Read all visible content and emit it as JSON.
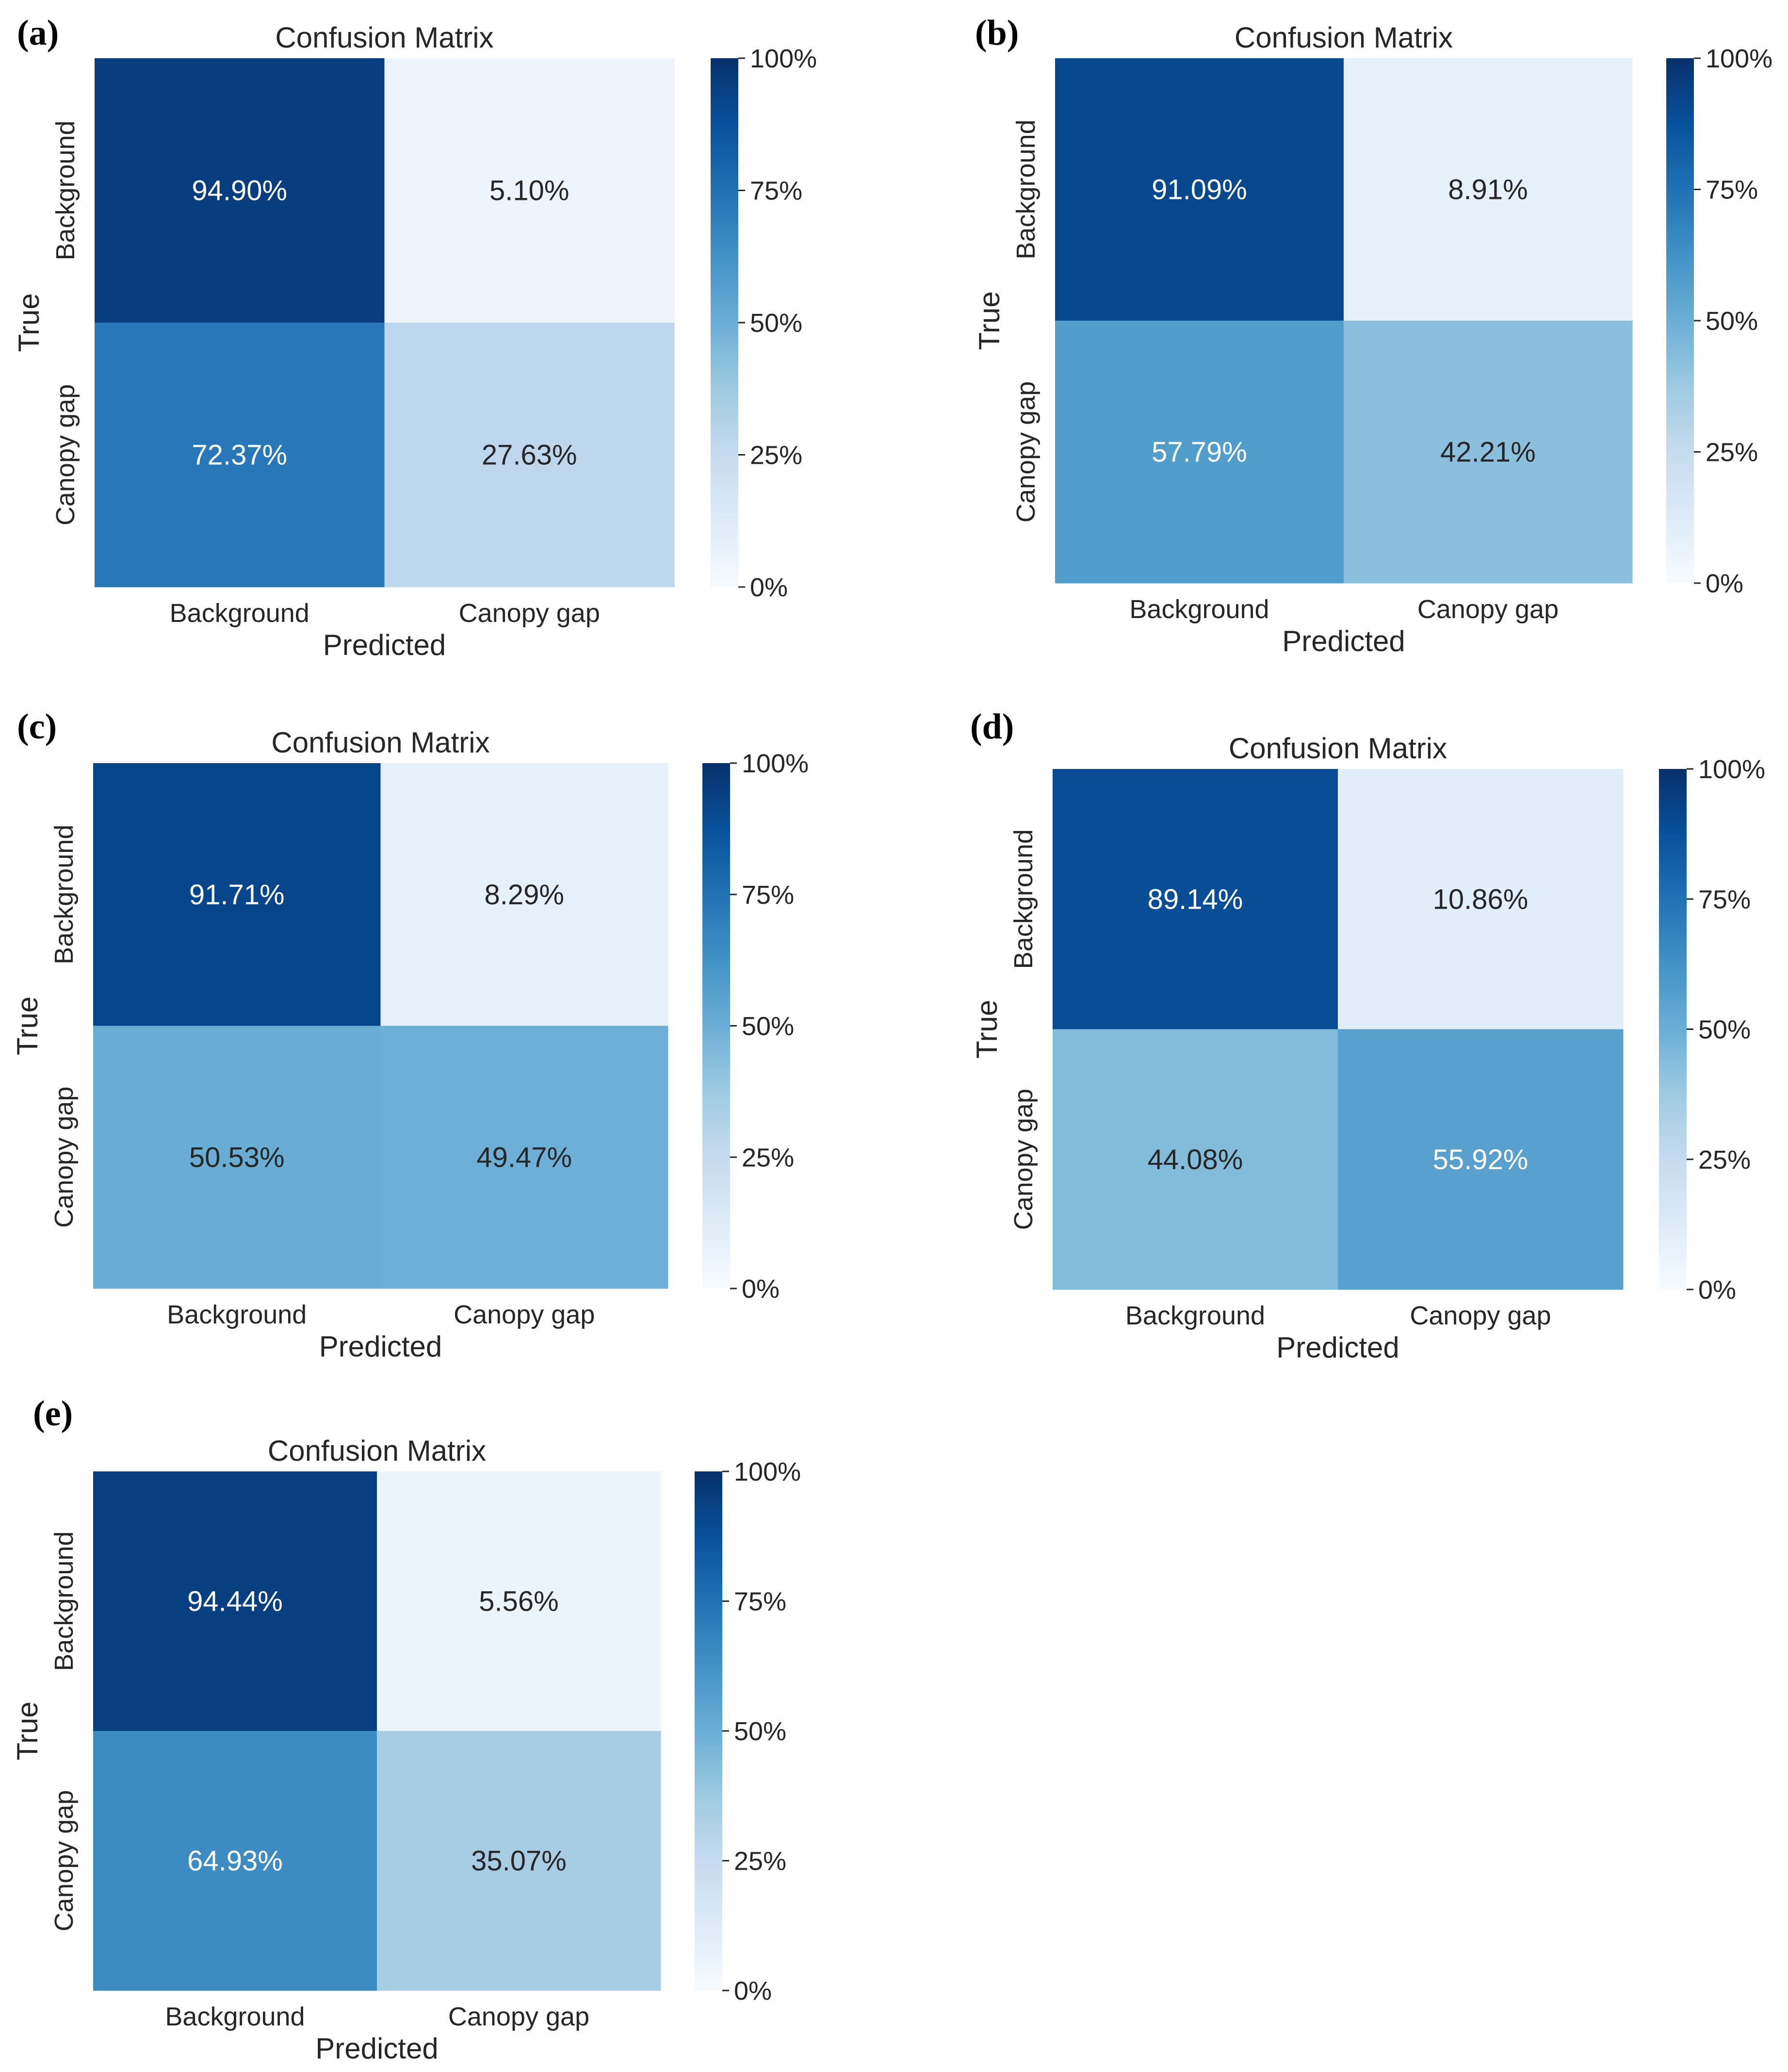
{
  "chart_data": [
    {
      "panel": "(a)",
      "type": "heatmap",
      "title": "Confusion Matrix",
      "xlabel": "Predicted",
      "ylabel": "True",
      "x_categories": [
        "Background",
        "Canopy gap"
      ],
      "y_categories": [
        "Background",
        "Canopy gap"
      ],
      "values": [
        [
          94.9,
          5.1
        ],
        [
          72.37,
          27.63
        ]
      ],
      "cell_labels": [
        [
          "94.90%",
          "5.10%"
        ],
        [
          "72.37%",
          "27.63%"
        ]
      ],
      "colorbar": {
        "range": [
          0,
          100
        ],
        "ticks": [
          "0%",
          "25%",
          "50%",
          "75%",
          "100%"
        ]
      }
    },
    {
      "panel": "(b)",
      "type": "heatmap",
      "title": "Confusion Matrix",
      "xlabel": "Predicted",
      "ylabel": "True",
      "x_categories": [
        "Background",
        "Canopy gap"
      ],
      "y_categories": [
        "Background",
        "Canopy gap"
      ],
      "values": [
        [
          91.09,
          8.91
        ],
        [
          57.79,
          42.21
        ]
      ],
      "cell_labels": [
        [
          "91.09%",
          "8.91%"
        ],
        [
          "57.79%",
          "42.21%"
        ]
      ],
      "colorbar": {
        "range": [
          0,
          100
        ],
        "ticks": [
          "0%",
          "25%",
          "50%",
          "75%",
          "100%"
        ]
      }
    },
    {
      "panel": "(c)",
      "type": "heatmap",
      "title": "Confusion Matrix",
      "xlabel": "Predicted",
      "ylabel": "True",
      "x_categories": [
        "Background",
        "Canopy gap"
      ],
      "y_categories": [
        "Background",
        "Canopy gap"
      ],
      "values": [
        [
          91.71,
          8.29
        ],
        [
          50.53,
          49.47
        ]
      ],
      "cell_labels": [
        [
          "91.71%",
          "8.29%"
        ],
        [
          "50.53%",
          "49.47%"
        ]
      ],
      "colorbar": {
        "range": [
          0,
          100
        ],
        "ticks": [
          "0%",
          "25%",
          "50%",
          "75%",
          "100%"
        ]
      }
    },
    {
      "panel": "(d)",
      "type": "heatmap",
      "title": "Confusion Matrix",
      "xlabel": "Predicted",
      "ylabel": "True",
      "x_categories": [
        "Background",
        "Canopy gap"
      ],
      "y_categories": [
        "Background",
        "Canopy gap"
      ],
      "values": [
        [
          89.14,
          10.86
        ],
        [
          44.08,
          55.92
        ]
      ],
      "cell_labels": [
        [
          "89.14%",
          "10.86%"
        ],
        [
          "44.08%",
          "55.92%"
        ]
      ],
      "colorbar": {
        "range": [
          0,
          100
        ],
        "ticks": [
          "0%",
          "25%",
          "50%",
          "75%",
          "100%"
        ]
      }
    },
    {
      "panel": "(e)",
      "type": "heatmap",
      "title": "Confusion Matrix",
      "xlabel": "Predicted",
      "ylabel": "True",
      "x_categories": [
        "Background",
        "Canopy gap"
      ],
      "y_categories": [
        "Background",
        "Canopy gap"
      ],
      "values": [
        [
          94.44,
          5.56
        ],
        [
          64.93,
          35.07
        ]
      ],
      "cell_labels": [
        [
          "94.44%",
          "5.56%"
        ],
        [
          "64.93%",
          "35.07%"
        ]
      ],
      "colorbar": {
        "range": [
          0,
          100
        ],
        "ticks": [
          "0%",
          "25%",
          "50%",
          "75%",
          "100%"
        ]
      }
    }
  ]
}
